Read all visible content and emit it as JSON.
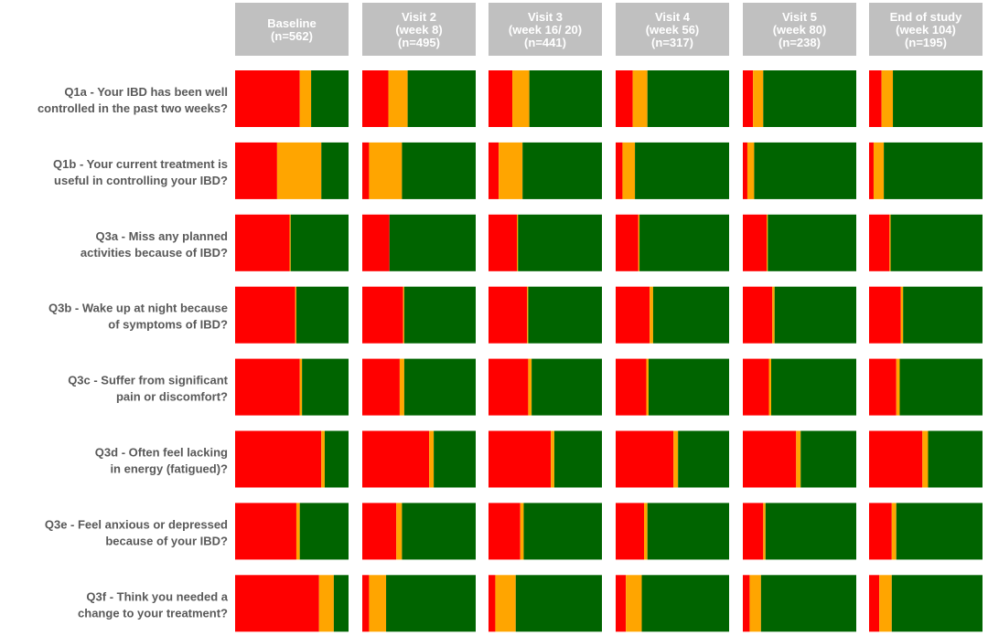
{
  "colors": {
    "red": "#ff0000",
    "orange": "#ffa500",
    "green": "#006400",
    "header": "#c0c0c0"
  },
  "chart_data": {
    "type": "bar",
    "stacked": true,
    "orientation": "horizontal",
    "segment_order": [
      "red",
      "orange",
      "green"
    ],
    "columns": [
      {
        "lines": [
          "Baseline",
          "(n=562)"
        ]
      },
      {
        "lines": [
          "Visit 2",
          "(week 8)",
          "(n=495)"
        ]
      },
      {
        "lines": [
          "Visit 3",
          "(week 16/ 20)",
          "(n=441)"
        ]
      },
      {
        "lines": [
          "Visit 4",
          "(week 56)",
          "(n=317)"
        ]
      },
      {
        "lines": [
          "Visit 5",
          "(week 80)",
          "(n=238)"
        ]
      },
      {
        "lines": [
          "End of study",
          "(week 104)",
          "(n=195)"
        ]
      }
    ],
    "rows": [
      {
        "lines": [
          "Q1a - Your IBD has been well",
          "controlled in the past two weeks?"
        ],
        "values": [
          [
            57,
            10,
            33
          ],
          [
            23,
            17,
            60
          ],
          [
            21,
            15,
            64
          ],
          [
            15,
            13,
            72
          ],
          [
            9,
            9,
            82
          ],
          [
            11,
            10,
            79
          ]
        ]
      },
      {
        "lines": [
          "Q1b - Your current treatment is",
          "useful in controlling your IBD?"
        ],
        "values": [
          [
            37,
            39,
            24
          ],
          [
            6,
            29,
            65
          ],
          [
            9,
            21,
            70
          ],
          [
            6,
            11,
            83
          ],
          [
            4,
            6,
            90
          ],
          [
            4,
            9,
            87
          ]
        ]
      },
      {
        "lines": [
          "Q3a - Miss any planned",
          "activities because of IBD?"
        ],
        "values": [
          [
            48,
            1,
            51
          ],
          [
            24,
            0,
            76
          ],
          [
            25,
            1,
            74
          ],
          [
            20,
            1,
            79
          ],
          [
            21,
            1,
            78
          ],
          [
            18,
            1,
            81
          ]
        ]
      },
      {
        "lines": [
          "Q3b - Wake up at night because",
          "of symptoms of IBD?"
        ],
        "values": [
          [
            53,
            1,
            46
          ],
          [
            36,
            1,
            63
          ],
          [
            34,
            1,
            65
          ],
          [
            30,
            3,
            67
          ],
          [
            26,
            2,
            72
          ],
          [
            28,
            2,
            70
          ]
        ]
      },
      {
        "lines": [
          "Q3c - Suffer from significant",
          "pain or discomfort?"
        ],
        "values": [
          [
            57,
            2,
            41
          ],
          [
            33,
            4,
            63
          ],
          [
            35,
            3,
            62
          ],
          [
            27,
            2,
            71
          ],
          [
            23,
            2,
            75
          ],
          [
            24,
            3,
            73
          ]
        ]
      },
      {
        "lines": [
          "Q3d - Often feel lacking",
          "in energy (fatigued)?"
        ],
        "values": [
          [
            76,
            3,
            21
          ],
          [
            59,
            4,
            37
          ],
          [
            55,
            3,
            42
          ],
          [
            51,
            4,
            45
          ],
          [
            47,
            4,
            49
          ],
          [
            47,
            5,
            48
          ]
        ]
      },
      {
        "lines": [
          "Q3e - Feel anxious or depressed",
          "because of your IBD?"
        ],
        "values": [
          [
            54,
            3,
            43
          ],
          [
            30,
            5,
            65
          ],
          [
            28,
            3,
            69
          ],
          [
            25,
            3,
            72
          ],
          [
            18,
            2,
            80
          ],
          [
            20,
            4,
            76
          ]
        ]
      },
      {
        "lines": [
          "Q3f - Think you needed a",
          "change to your treatment?"
        ],
        "values": [
          [
            74,
            13,
            13
          ],
          [
            6,
            15,
            79
          ],
          [
            6,
            18,
            76
          ],
          [
            9,
            14,
            77
          ],
          [
            6,
            10,
            84
          ],
          [
            9,
            11,
            80
          ]
        ]
      }
    ]
  }
}
